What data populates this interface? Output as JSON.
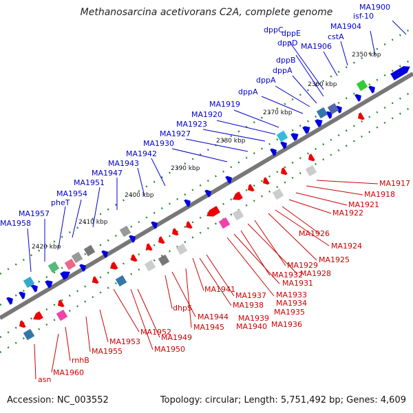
{
  "title": "Methanosarcina acetivorans C2A, complete genome",
  "footer": {
    "accession": "Accession: NC_003552",
    "info": "Topology: circular; Length: 5,751,492 bp; Genes: 4,609"
  },
  "colors": {
    "backbone": "#777777",
    "forward_strand": "#0000dd",
    "reverse_strand": "#ee0000",
    "tick_dots": "#2a8a2a"
  },
  "kbp_labels": [
    "2350 kbp",
    "2360 kbp",
    "2370 kbp",
    "2380 kbp",
    "2390 kbp",
    "2400 kbp",
    "2410 kbp",
    "2420 kbp"
  ],
  "upper_gene_labels": [
    "MA1900",
    "isf-10",
    "MA1904",
    "cstA",
    "MA1906",
    "dppC",
    "dppE",
    "dppD",
    "dppB",
    "dppA",
    "dppA",
    "dppA",
    "MA1919",
    "MA1920",
    "MA1923",
    "MA1927",
    "MA1930",
    "MA1942",
    "MA1943",
    "MA1947",
    "MA1951",
    "MA1954",
    "pheT",
    "MA1957",
    "MA1958"
  ],
  "lower_gene_labels": [
    "MA1917",
    "MA1918",
    "MA1921",
    "MA1922",
    "MA1926",
    "MA1924",
    "MA1925",
    "MA1929",
    "MA1928",
    "MA1932",
    "MA1931",
    "MA1933",
    "MA1934",
    "MA1935",
    "MA1936",
    "MA1937",
    "MA1938",
    "MA1939",
    "MA1940",
    "MA1941",
    "dhpS",
    "MA1944",
    "MA1945",
    "MA1949",
    "MA1950",
    "MA1952",
    "MA1953",
    "MA1955",
    "rnhB",
    "MA1960",
    "asn"
  ]
}
